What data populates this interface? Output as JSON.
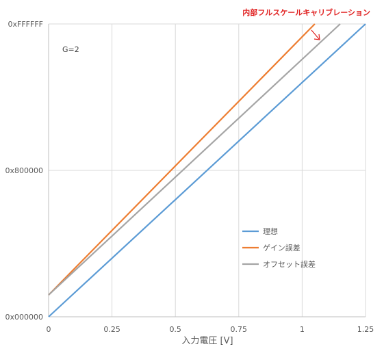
{
  "chart_data": {
    "type": "line",
    "title": "",
    "xlabel": "入力電圧 [V]",
    "ylabel": "",
    "xlim": [
      0,
      1.25
    ],
    "ylim": [
      0,
      16777215
    ],
    "grid": true,
    "legend_position": "lower-right",
    "x_ticks": [
      "0",
      "0.25",
      "0.5",
      "0.75",
      "1",
      "1.25"
    ],
    "y_ticks": [
      {
        "label": "0x000000",
        "value": 0
      },
      {
        "label": "0x800000",
        "value": 8388608
      },
      {
        "label": "0xFFFFFF",
        "value": 16777215
      }
    ],
    "series": [
      {
        "name": "理想",
        "color": "#5B9BD5",
        "x": [
          0,
          1.25
        ],
        "y": [
          0,
          16777215
        ]
      },
      {
        "name": "ゲイン誤差",
        "color": "#ED7D31",
        "x": [
          0,
          1.05
        ],
        "y": [
          1250000,
          16777215
        ]
      },
      {
        "name": "オフセット誤差",
        "color": "#A5A5A5",
        "x": [
          0,
          1.15
        ],
        "y": [
          1250000,
          16777215
        ]
      }
    ],
    "annotations": {
      "gain_label": "G=2",
      "callout_text": "内部フルスケールキャリブレーション",
      "callout_color": "#E02020"
    }
  }
}
